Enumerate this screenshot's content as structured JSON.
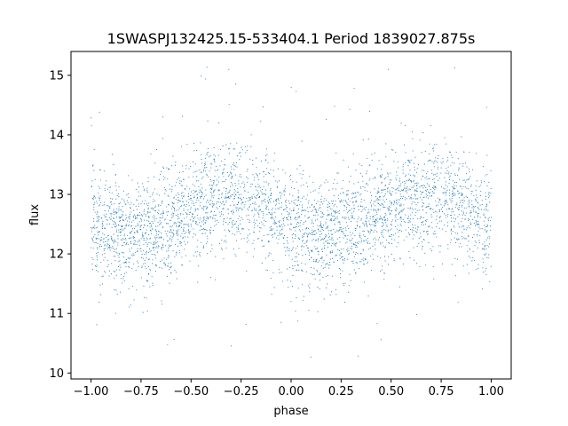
{
  "chart_data": {
    "type": "scatter",
    "title": "1SWASPJ132425.15-533404.1 Period 1839027.875s",
    "xlabel": "phase",
    "ylabel": "flux",
    "xlim": [
      -1.1,
      1.1
    ],
    "ylim": [
      9.9,
      15.4
    ],
    "xticks": [
      -1.0,
      -0.75,
      -0.5,
      -0.25,
      0.0,
      0.25,
      0.5,
      0.75,
      1.0
    ],
    "xtick_labels": [
      "−1.00",
      "−0.75",
      "−0.50",
      "−0.25",
      "0.00",
      "0.25",
      "0.50",
      "0.75",
      "1.00"
    ],
    "yticks": [
      10,
      11,
      12,
      13,
      14,
      15
    ],
    "ytick_labels": [
      "10",
      "11",
      "12",
      "13",
      "14",
      "15"
    ],
    "grid": false,
    "legend": "none",
    "marker_color": "#1f77b4",
    "phase_range": [
      -1.0,
      1.0
    ],
    "light_curve_envelope": [
      {
        "phase": -1.0,
        "flux": 12.45
      },
      {
        "phase": -0.9,
        "flux": 12.4
      },
      {
        "phase": -0.8,
        "flux": 12.35
      },
      {
        "phase": -0.7,
        "flux": 12.4
      },
      {
        "phase": -0.6,
        "flux": 12.6
      },
      {
        "phase": -0.5,
        "flux": 12.75
      },
      {
        "phase": -0.4,
        "flux": 12.85
      },
      {
        "phase": -0.3,
        "flux": 12.95
      },
      {
        "phase": -0.2,
        "flux": 12.9
      },
      {
        "phase": -0.1,
        "flux": 12.7
      },
      {
        "phase": 0.0,
        "flux": 12.45
      },
      {
        "phase": 0.1,
        "flux": 12.4
      },
      {
        "phase": 0.2,
        "flux": 12.35
      },
      {
        "phase": 0.3,
        "flux": 12.4
      },
      {
        "phase": 0.4,
        "flux": 12.6
      },
      {
        "phase": 0.5,
        "flux": 12.75
      },
      {
        "phase": 0.6,
        "flux": 12.85
      },
      {
        "phase": 0.7,
        "flux": 12.95
      },
      {
        "phase": 0.8,
        "flux": 12.9
      },
      {
        "phase": 0.9,
        "flux": 12.7
      },
      {
        "phase": 1.0,
        "flux": 12.45
      }
    ],
    "typical_scatter": 0.45
  }
}
